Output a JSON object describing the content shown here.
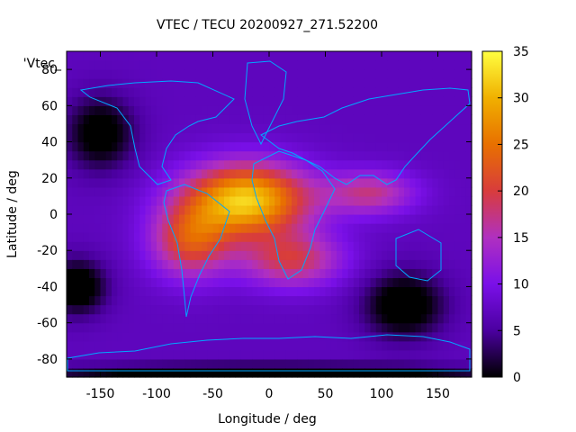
{
  "chart_data": {
    "type": "heatmap",
    "title": "VTEC / TECU 20200927_271.52200",
    "xlabel": "Longitude / deg",
    "ylabel": "Latitude / deg",
    "legend_label": "'Vtec_",
    "xlim": [
      -180,
      180
    ],
    "ylim": [
      -90,
      90
    ],
    "x_ticks": [
      -150,
      -100,
      -50,
      0,
      50,
      100,
      150
    ],
    "y_ticks": [
      -80,
      -60,
      -40,
      -20,
      0,
      20,
      40,
      60,
      80
    ],
    "colorbar": {
      "min": 0,
      "max": 35,
      "ticks": [
        0,
        5,
        10,
        15,
        20,
        25,
        30,
        35
      ],
      "colormap": [
        "#000000",
        "#4b00a0",
        "#7a10e8",
        "#b030c0",
        "#d83c3c",
        "#e87000",
        "#f0b000",
        "#ffff40"
      ]
    },
    "field": {
      "background_value": 7,
      "peaks": [
        {
          "lon": -20,
          "lat": 8,
          "value": 32,
          "spread_lon": 55,
          "spread_lat": 20
        },
        {
          "lon": -70,
          "lat": -15,
          "value": 21,
          "spread_lon": 35,
          "spread_lat": 20
        },
        {
          "lon": 20,
          "lat": -25,
          "value": 19,
          "spread_lon": 45,
          "spread_lat": 15
        },
        {
          "lon": 90,
          "lat": 12,
          "value": 17,
          "spread_lon": 40,
          "spread_lat": 12
        },
        {
          "lon": -150,
          "lat": 45,
          "value": -2,
          "spread_lon": 30,
          "spread_lat": 20
        },
        {
          "lon": 120,
          "lat": -50,
          "value": -3,
          "spread_lon": 35,
          "spread_lat": 18
        },
        {
          "lon": -170,
          "lat": -40,
          "value": -3,
          "spread_lon": 25,
          "spread_lat": 15
        },
        {
          "lon": 0,
          "lat": -88,
          "value": -4,
          "spread_lon": 200,
          "spread_lat": 5
        }
      ]
    }
  }
}
